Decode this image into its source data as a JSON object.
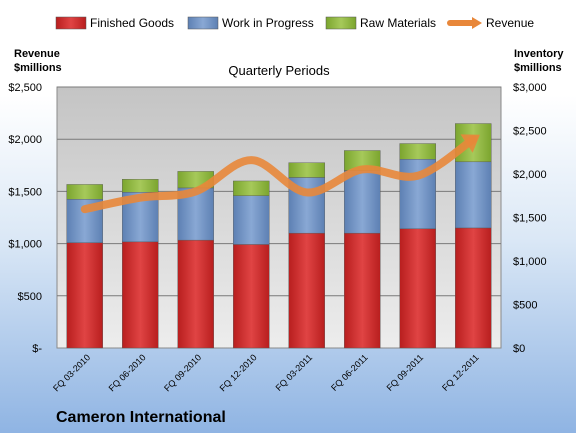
{
  "chart_data": {
    "type": "bar",
    "stacked": true,
    "title": "Quarterly Periods",
    "company": "Cameron International",
    "categories": [
      "FQ 03-2010",
      "FQ 06-2010",
      "FQ 09-2010",
      "FQ 12-2010",
      "FQ 03-2011",
      "FQ 06-2011",
      "FQ 09-2011",
      "FQ 12-2011"
    ],
    "left_axis": {
      "label_line1": "Revenue",
      "label_line2": "$millions",
      "range": [
        0,
        2500
      ],
      "ticks": [
        0,
        500,
        1000,
        1500,
        2000,
        2500
      ],
      "tick_labels": [
        "$-",
        "$500",
        "$1,000",
        "$1,500",
        "$2,000",
        "$2,500"
      ]
    },
    "right_axis": {
      "label_line1": "Inventory",
      "label_line2": "$millions",
      "range": [
        0,
        3000
      ],
      "ticks": [
        0,
        500,
        1000,
        1500,
        2000,
        2500,
        3000
      ],
      "tick_labels": [
        "$0",
        "$500",
        "$1,000",
        "$1,500",
        "$2,000",
        "$2,500",
        "$3,000"
      ]
    },
    "series": [
      {
        "name": "Finished Goods",
        "axis": "right",
        "color": "#cc2a2a",
        "values": [
          1210,
          1220,
          1240,
          1190,
          1320,
          1320,
          1370,
          1380
        ]
      },
      {
        "name": "Work in Progress",
        "axis": "right",
        "color": "#6c8ebf",
        "values": [
          500,
          570,
          600,
          560,
          640,
          720,
          800,
          760
        ]
      },
      {
        "name": "Raw Materials",
        "axis": "right",
        "color": "#8fb63a",
        "values": [
          170,
          150,
          190,
          170,
          170,
          230,
          180,
          440
        ]
      },
      {
        "name": "Revenue",
        "axis": "left",
        "type": "line",
        "color": "#e8873a",
        "values": [
          1330,
          1440,
          1500,
          1800,
          1490,
          1710,
          1650,
          2000
        ]
      }
    ],
    "grid": true,
    "legend_position": "top"
  }
}
